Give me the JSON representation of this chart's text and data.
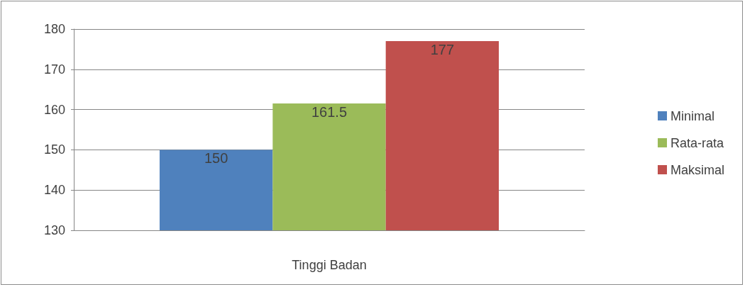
{
  "chart_data": {
    "type": "bar",
    "categories": [
      "Tinggi Badan"
    ],
    "series": [
      {
        "name": "Minimal",
        "color": "#4f81bd",
        "values": [
          150
        ]
      },
      {
        "name": "Rata-rata",
        "color": "#9bbb59",
        "values": [
          161.5
        ]
      },
      {
        "name": "Maksimal",
        "color": "#c0504d",
        "values": [
          177
        ]
      }
    ],
    "ylim": [
      130,
      180
    ],
    "yticks": [
      130,
      140,
      150,
      160,
      170,
      180
    ],
    "grid": "y",
    "legend": "right",
    "data_labels": true
  }
}
